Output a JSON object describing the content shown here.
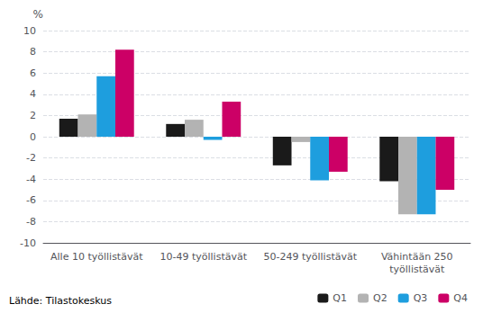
{
  "chart_data": {
    "type": "bar",
    "categories": [
      "Alle 10 työllistävät",
      "10-49 työllistävät",
      "50-249 työllistävät",
      "Vähintään 250\ntyöllistävät"
    ],
    "series": [
      {
        "name": "Q1",
        "color": "#1a1a1a",
        "values": [
          1.7,
          1.2,
          -2.7,
          -4.2
        ]
      },
      {
        "name": "Q2",
        "color": "#b3b3b3",
        "values": [
          2.1,
          1.6,
          -0.5,
          -7.3
        ]
      },
      {
        "name": "Q3",
        "color": "#1e9ede",
        "values": [
          5.7,
          -0.3,
          -4.1,
          -7.3
        ]
      },
      {
        "name": "Q4",
        "color": "#cc0066",
        "values": [
          8.2,
          3.3,
          -3.3,
          -5.0
        ]
      }
    ],
    "ylim": [
      -10,
      10
    ],
    "yticks": [
      -10,
      -8,
      -6,
      -4,
      -2,
      0,
      2,
      4,
      6,
      8,
      10
    ],
    "ylabel": "%",
    "footnote": "Lähde: Tilastokeskus",
    "grid": true,
    "legend": "bottom"
  }
}
